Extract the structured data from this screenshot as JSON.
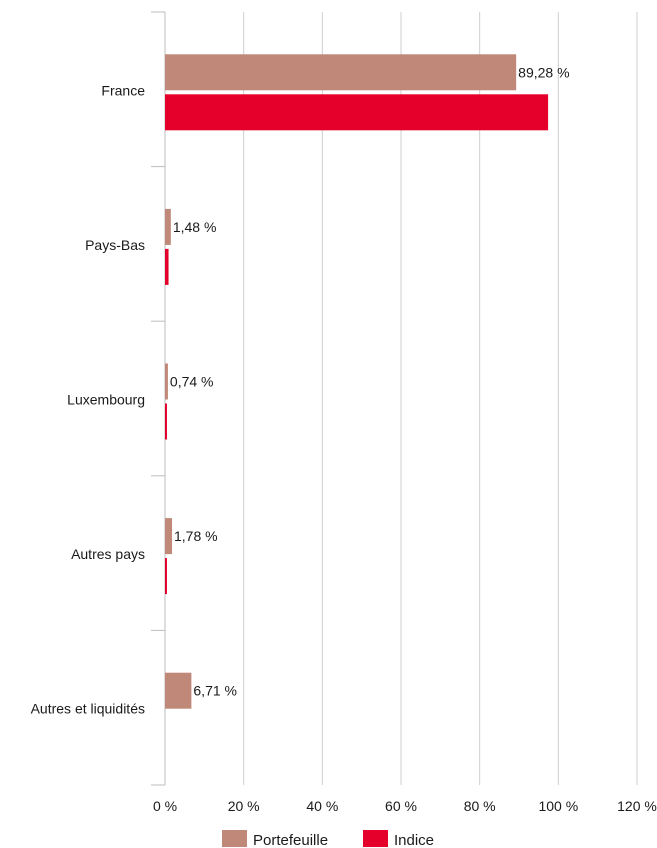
{
  "chart_data": {
    "type": "bar",
    "orientation": "horizontal",
    "categories": [
      "France",
      "Pays-Bas",
      "Luxembourg",
      "Autres pays",
      "Autres et liquidités"
    ],
    "series": [
      {
        "name": "Portefeuille",
        "color": "#c08878",
        "values": [
          89.28,
          1.48,
          0.74,
          1.78,
          6.71
        ],
        "labels": [
          "89,28 %",
          "1,48 %",
          "0,74 %",
          "1,78 %",
          "6,71 %"
        ]
      },
      {
        "name": "Indice",
        "color": "#e4002b",
        "values": [
          97.4,
          0.9,
          0.5,
          0.5,
          0
        ],
        "labels": [
          "",
          "",
          "",
          "",
          ""
        ]
      }
    ],
    "xlim": [
      0,
      120
    ],
    "xticks": [
      0,
      20,
      40,
      60,
      80,
      100,
      120
    ],
    "xtick_labels": [
      "0 %",
      "20 %",
      "40 %",
      "60 %",
      "80 %",
      "100 %",
      "120 %"
    ],
    "grid": true,
    "legend": "bottom",
    "title": "",
    "xlabel": "",
    "ylabel": ""
  }
}
